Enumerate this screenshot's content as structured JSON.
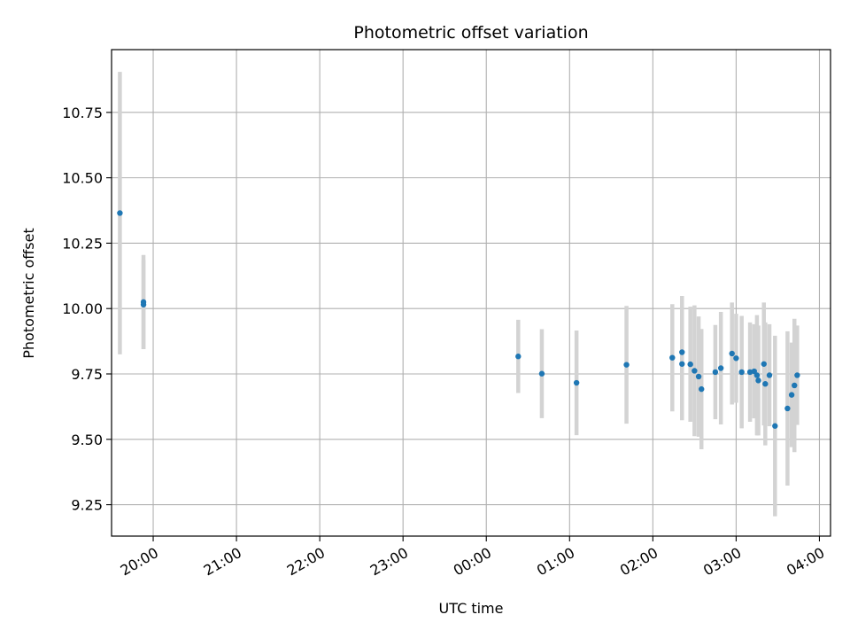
{
  "chart_data": {
    "type": "scatter",
    "title": "Photometric offset variation",
    "xlabel": "UTC time",
    "ylabel": "Photometric offset",
    "grid": true,
    "legend": "none",
    "x_axis_kind": "time",
    "x_ticks": [
      "20:00",
      "21:00",
      "22:00",
      "23:00",
      "00:00",
      "01:00",
      "02:00",
      "03:00",
      "04:00"
    ],
    "y_ticks": [
      "9.25",
      "9.50",
      "9.75",
      "10.00",
      "10.25",
      "10.50",
      "10.75"
    ],
    "xlim": [
      "19:30",
      "04:08"
    ],
    "ylim": [
      9.13,
      10.99
    ],
    "colors": {
      "point": "#1f77b4",
      "error_bar": "#d3d3d3",
      "grid": "#b0b0b0"
    },
    "points": [
      {
        "x": "19:36",
        "y": 10.365,
        "err": 0.54
      },
      {
        "x": "19:53",
        "y": 10.025,
        "err": 0.18
      },
      {
        "x": "19:53",
        "y": 10.015,
        "err": 0.17
      },
      {
        "x": "00:23",
        "y": 9.817,
        "err": 0.14
      },
      {
        "x": "00:40",
        "y": 9.751,
        "err": 0.17
      },
      {
        "x": "01:05",
        "y": 9.716,
        "err": 0.2
      },
      {
        "x": "01:41",
        "y": 9.785,
        "err": 0.225
      },
      {
        "x": "02:14",
        "y": 9.812,
        "err": 0.205
      },
      {
        "x": "02:21",
        "y": 9.833,
        "err": 0.215
      },
      {
        "x": "02:21",
        "y": 9.788,
        "err": 0.215
      },
      {
        "x": "02:27",
        "y": 9.787,
        "err": 0.22
      },
      {
        "x": "02:30",
        "y": 9.762,
        "err": 0.25
      },
      {
        "x": "02:33",
        "y": 9.74,
        "err": 0.23
      },
      {
        "x": "02:35",
        "y": 9.692,
        "err": 0.23
      },
      {
        "x": "02:45",
        "y": 9.757,
        "err": 0.18
      },
      {
        "x": "02:49",
        "y": 9.772,
        "err": 0.215
      },
      {
        "x": "02:57",
        "y": 9.828,
        "err": 0.195
      },
      {
        "x": "03:00",
        "y": 9.81,
        "err": 0.17
      },
      {
        "x": "03:04",
        "y": 9.757,
        "err": 0.215
      },
      {
        "x": "03:10",
        "y": 9.757,
        "err": 0.19
      },
      {
        "x": "03:13",
        "y": 9.76,
        "err": 0.18
      },
      {
        "x": "03:15",
        "y": 9.745,
        "err": 0.23
      },
      {
        "x": "03:16",
        "y": 9.725,
        "err": 0.21
      },
      {
        "x": "03:20",
        "y": 9.788,
        "err": 0.235
      },
      {
        "x": "03:21",
        "y": 9.712,
        "err": 0.235
      },
      {
        "x": "03:24",
        "y": 9.745,
        "err": 0.195
      },
      {
        "x": "03:28",
        "y": 9.551,
        "err": 0.345
      },
      {
        "x": "03:37",
        "y": 9.618,
        "err": 0.295
      },
      {
        "x": "03:40",
        "y": 9.67,
        "err": 0.2
      },
      {
        "x": "03:42",
        "y": 9.706,
        "err": 0.255
      },
      {
        "x": "03:44",
        "y": 9.745,
        "err": 0.19
      }
    ]
  }
}
